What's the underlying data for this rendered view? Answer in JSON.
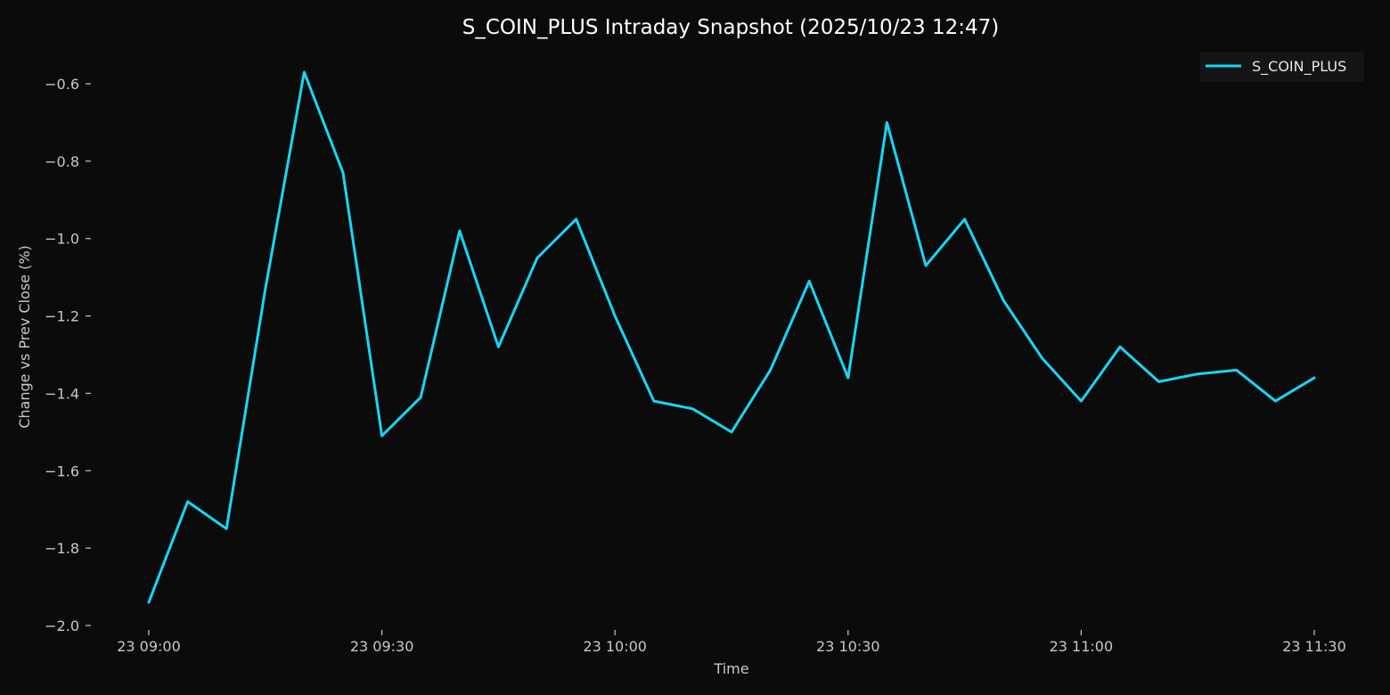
{
  "chart_data": {
    "type": "line",
    "title": "S_COIN_PLUS Intraday Snapshot (2025/10/23 12:47)",
    "xlabel": "Time",
    "ylabel": "Change vs Prev Close (%)",
    "x": [
      "09:00",
      "09:05",
      "09:10",
      "09:15",
      "09:20",
      "09:25",
      "09:30",
      "09:35",
      "09:40",
      "09:45",
      "09:50",
      "09:55",
      "10:00",
      "10:05",
      "10:10",
      "10:15",
      "10:20",
      "10:25",
      "10:30",
      "10:35",
      "10:40",
      "10:45",
      "10:50",
      "10:55",
      "11:00",
      "11:05",
      "11:10",
      "11:15",
      "11:20",
      "11:25",
      "11:30"
    ],
    "x_ticks": [
      {
        "value": "09:00",
        "label": "23 09:00"
      },
      {
        "value": "09:30",
        "label": "23 09:30"
      },
      {
        "value": "10:00",
        "label": "23 10:00"
      },
      {
        "value": "10:30",
        "label": "23 10:30"
      },
      {
        "value": "11:00",
        "label": "23 11:00"
      },
      {
        "value": "11:30",
        "label": "23 11:30"
      }
    ],
    "y_ticks": [
      {
        "value": -2.0,
        "label": "−2.0"
      },
      {
        "value": -1.8,
        "label": "−1.8"
      },
      {
        "value": -1.6,
        "label": "−1.6"
      },
      {
        "value": -1.4,
        "label": "−1.4"
      },
      {
        "value": -1.2,
        "label": "−1.2"
      },
      {
        "value": -1.0,
        "label": "−1.0"
      },
      {
        "value": -0.8,
        "label": "−0.8"
      },
      {
        "value": -0.6,
        "label": "−0.6"
      }
    ],
    "ylim": [
      -2.0,
      -0.6
    ],
    "grid": false,
    "legend_position": "top-right",
    "series": [
      {
        "name": "S_COIN_PLUS",
        "color": "#14d8f5",
        "values": [
          -1.94,
          -1.68,
          -1.75,
          -1.13,
          -0.57,
          -0.83,
          -1.51,
          -1.41,
          -0.98,
          -1.28,
          -1.05,
          -0.95,
          -1.2,
          -1.42,
          -1.44,
          -1.5,
          -1.34,
          -1.11,
          -1.36,
          -0.7,
          -1.07,
          -0.95,
          -1.16,
          -1.31,
          -1.42,
          -1.28,
          -1.37,
          -1.35,
          -1.34,
          -1.42,
          -1.36
        ]
      }
    ]
  },
  "colors": {
    "background": "#0b0b0c",
    "text": "#c8c8c8",
    "title": "#ffffff",
    "legend_background": "#141516"
  }
}
